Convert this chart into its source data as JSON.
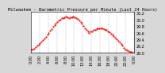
{
  "title": "Milwaukee - Barometric Pressure per Minute (Last 24 Hours)",
  "background_color": "#d8d8d8",
  "plot_background": "#ffffff",
  "line_color": "#ff0000",
  "grid_color": "#999999",
  "ylim": [
    29.0,
    30.25
  ],
  "yticks": [
    29.0,
    29.2,
    29.4,
    29.6,
    29.8,
    30.0,
    30.2
  ],
  "ytick_labels": [
    "29.0",
    "29.2",
    "29.4",
    "29.6",
    "29.8",
    "30.0",
    "30.2"
  ],
  "x_points": [
    0,
    1,
    2,
    3,
    4,
    5,
    6,
    7,
    8,
    9,
    10,
    11,
    12,
    13,
    14,
    15,
    16,
    17,
    18,
    19,
    20,
    21,
    22,
    23,
    24,
    25,
    26,
    27,
    28,
    29,
    30,
    31,
    32,
    33,
    34,
    35,
    36,
    37,
    38,
    39,
    40,
    41,
    42,
    43,
    44,
    45,
    46,
    47,
    48,
    49,
    50,
    51,
    52,
    53,
    54,
    55,
    56,
    57,
    58,
    59,
    60,
    61,
    62,
    63,
    64,
    65,
    66,
    67,
    68,
    69,
    70,
    71
  ],
  "y_points": [
    29.08,
    29.1,
    29.12,
    29.16,
    29.2,
    29.24,
    29.29,
    29.33,
    29.38,
    29.43,
    29.48,
    29.54,
    29.6,
    29.66,
    29.72,
    29.78,
    29.83,
    29.88,
    29.92,
    29.97,
    30.01,
    30.04,
    30.06,
    30.08,
    30.09,
    30.07,
    30.06,
    30.07,
    30.08,
    30.09,
    30.07,
    30.05,
    30.02,
    29.98,
    29.93,
    29.87,
    29.8,
    29.74,
    29.68,
    29.63,
    29.6,
    29.63,
    29.65,
    29.68,
    29.7,
    29.72,
    29.73,
    29.74,
    29.74,
    29.73,
    29.72,
    29.7,
    29.68,
    29.65,
    29.62,
    29.58,
    29.54,
    29.5,
    29.45,
    29.4,
    29.35,
    29.3,
    29.25,
    29.2,
    29.15,
    29.1,
    29.07,
    29.05,
    29.03,
    29.01,
    28.99,
    28.97
  ],
  "marker_size": 1.2,
  "title_fontsize": 4.0,
  "tick_fontsize": 3.5,
  "n_vgrid": 12,
  "xtick_labels": [
    "0:00",
    "2:00",
    "4:00",
    "6:00",
    "8:00",
    "10:00",
    "12:00",
    "14:00",
    "16:00",
    "18:00",
    "20:00",
    "22:00",
    "0:00"
  ]
}
